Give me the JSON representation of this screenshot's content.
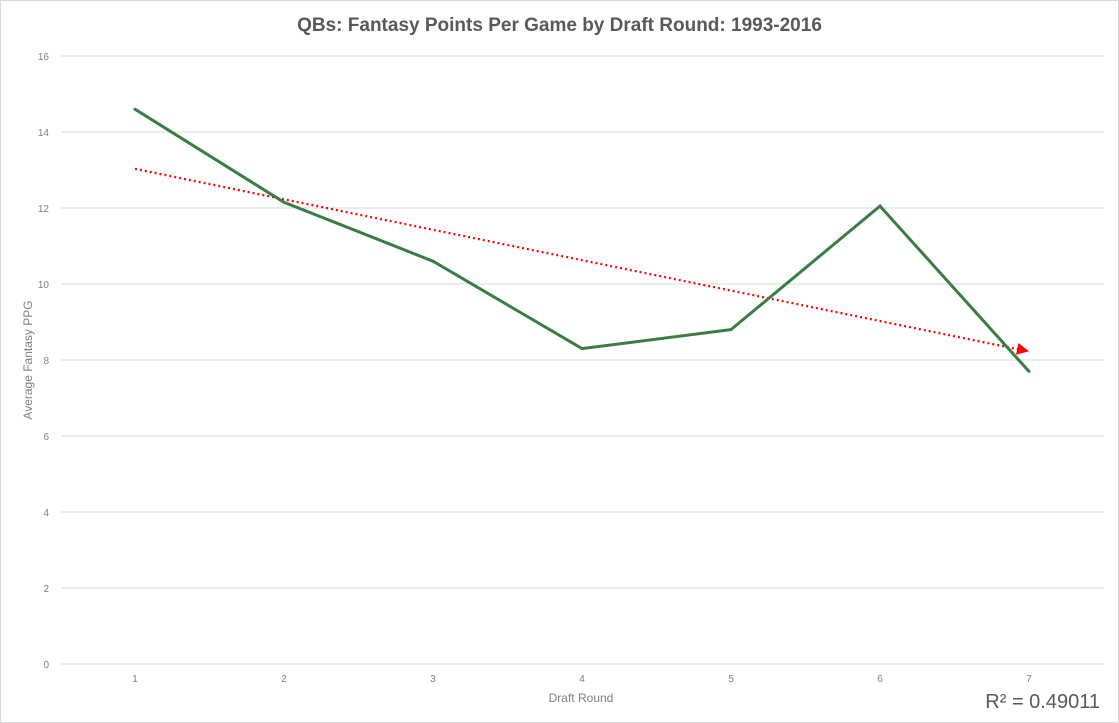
{
  "chart_data": {
    "type": "line",
    "title": "QBs: Fantasy Points Per Game by Draft Round: 1993-2016",
    "xlabel": "Draft Round",
    "ylabel": "Average Fantasy PPG",
    "categories": [
      "1",
      "2",
      "3",
      "4",
      "5",
      "6",
      "7"
    ],
    "ylim": [
      0,
      16
    ],
    "yticks": [
      "0",
      "2",
      "4",
      "6",
      "8",
      "10",
      "12",
      "14",
      "16"
    ],
    "grid": true,
    "legend": "none",
    "series": [
      {
        "values": [
          14.6,
          12.15,
          10.6,
          8.3,
          8.8,
          12.05,
          7.7
        ],
        "color": "#3a7d44",
        "style": "solid"
      }
    ],
    "trendline": {
      "type": "linear",
      "from": 13.03,
      "to": 8.23,
      "color": "#ff0000",
      "style": "dotted",
      "r2_label": "R² = 0.49011"
    }
  }
}
